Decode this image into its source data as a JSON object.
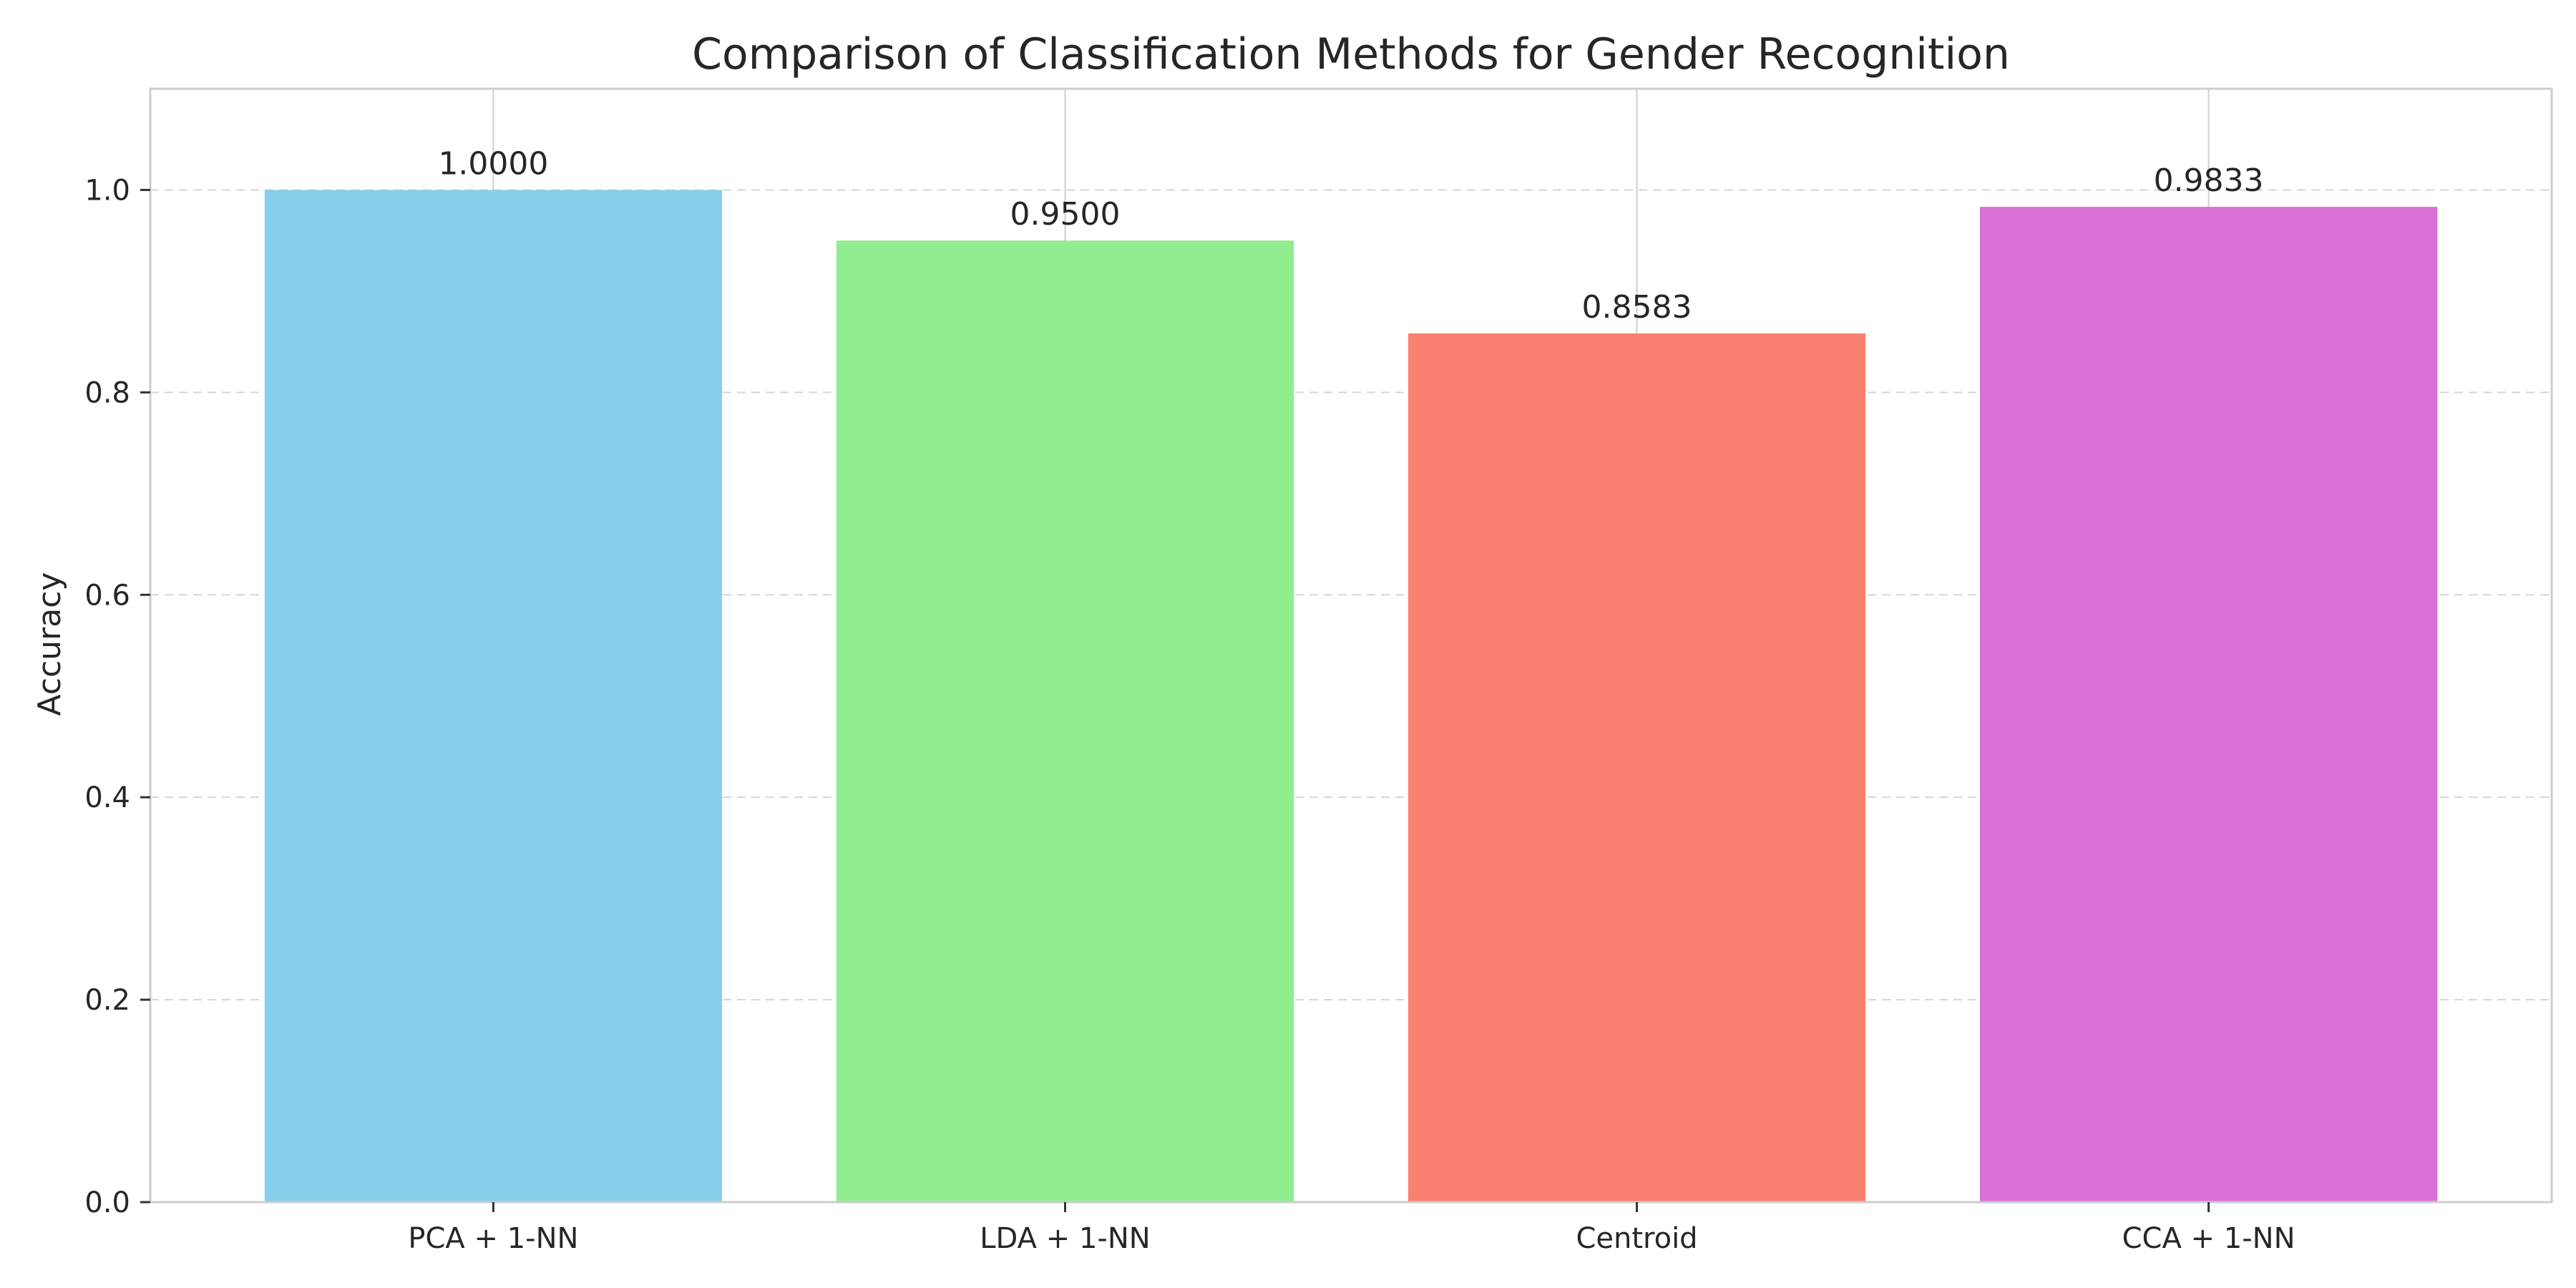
{
  "chart_data": {
    "type": "bar",
    "title": "Comparison of Classification Methods for Gender Recognition",
    "xlabel": "",
    "ylabel": "Accuracy",
    "categories": [
      "PCA + 1-NN",
      "LDA + 1-NN",
      "Centroid",
      "CCA + 1-NN"
    ],
    "values": [
      1.0,
      0.95,
      0.8583,
      0.9833
    ],
    "value_labels": [
      "1.0000",
      "0.9500",
      "0.8583",
      "0.9833"
    ],
    "colors": [
      "#87CEEB",
      "#90EE90",
      "#FA8072",
      "#DA70D6"
    ],
    "ylim": [
      0,
      1.1
    ],
    "yticks": [
      0.0,
      0.2,
      0.4,
      0.6,
      0.8,
      1.0
    ],
    "ytick_labels": [
      "0.0",
      "0.2",
      "0.4",
      "0.6",
      "0.8",
      "1.0"
    ],
    "grid": "dashed horizontal and solid vertical",
    "legend": "none"
  }
}
